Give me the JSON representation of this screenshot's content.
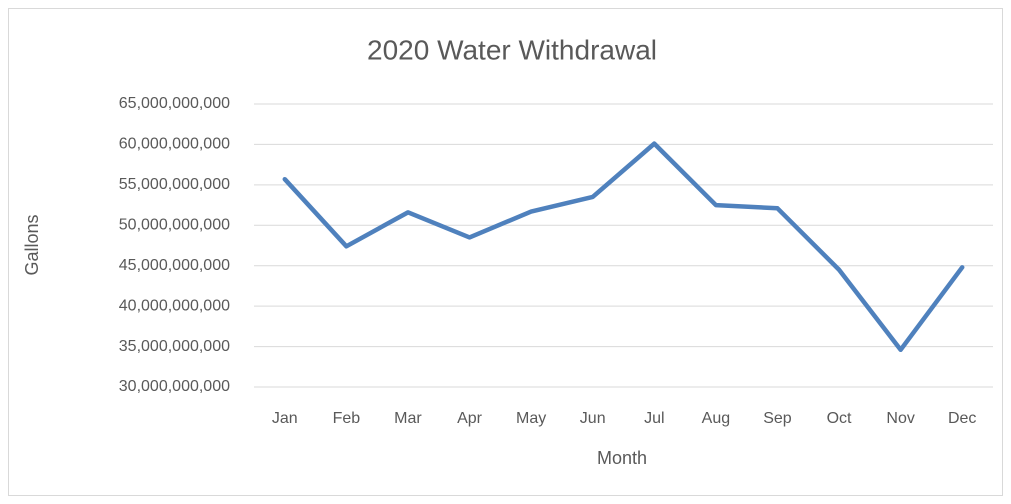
{
  "chart_data": {
    "type": "line",
    "title": "2020 Water Withdrawal",
    "x_label": "Month",
    "y_label": "Gallons",
    "categories": [
      "Jan",
      "Feb",
      "Mar",
      "Apr",
      "May",
      "Jun",
      "Jul",
      "Aug",
      "Sep",
      "Oct",
      "Nov",
      "Dec"
    ],
    "values": [
      55700000000,
      47400000000,
      51600000000,
      48500000000,
      51700000000,
      53500000000,
      60100000000,
      52500000000,
      52100000000,
      44500000000,
      34600000000,
      44800000000
    ],
    "color": "#4f81bd",
    "ylim": [
      30000000000,
      65000000000
    ],
    "yticks": [
      {
        "value": 30000000000,
        "label": "30,000,000,000"
      },
      {
        "value": 35000000000,
        "label": "35,000,000,000"
      },
      {
        "value": 40000000000,
        "label": "40,000,000,000"
      },
      {
        "value": 45000000000,
        "label": "45,000,000,000"
      },
      {
        "value": 50000000000,
        "label": "50,000,000,000"
      },
      {
        "value": 55000000000,
        "label": "55,000,000,000"
      },
      {
        "value": 60000000000,
        "label": "60,000,000,000"
      },
      {
        "value": 65000000000,
        "label": "65,000,000,000"
      }
    ],
    "grid": true
  }
}
